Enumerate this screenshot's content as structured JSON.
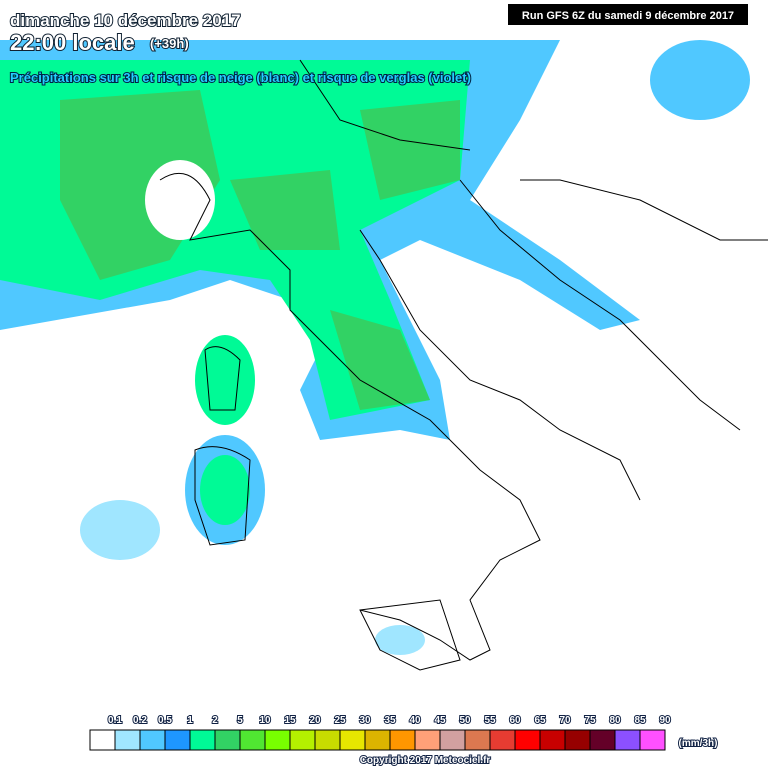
{
  "header": {
    "date": "dimanche 10 décembre 2017",
    "time": "22:00 locale",
    "lead": "(+39h)",
    "subtitle": "Précipitations sur 3h et risque de neige (blanc) et risque de verglas (violet)",
    "run": "Run GFS 6Z du samedi 9 décembre 2017"
  },
  "legend": {
    "labels": [
      "0.1",
      "0.2",
      "0.5",
      "1",
      "2",
      "5",
      "10",
      "15",
      "20",
      "25",
      "30",
      "35",
      "40",
      "45",
      "50",
      "55",
      "60",
      "65",
      "70",
      "75",
      "80",
      "85",
      "90"
    ],
    "colors": [
      "#ffffff",
      "#a0e6ff",
      "#50c8ff",
      "#1e96ff",
      "#00fa96",
      "#32d264",
      "#50e632",
      "#78ff00",
      "#b4f000",
      "#c8dc00",
      "#e6e600",
      "#dcb400",
      "#ff9600",
      "#ffa078",
      "#d2a0a0",
      "#dc7850",
      "#e63c32",
      "#ff0000",
      "#c80000",
      "#960000",
      "#640028",
      "#8c50ff",
      "#ff50ff"
    ],
    "unit": "(mm/3h)"
  },
  "footer": {
    "copyright": "Copyright 2017 Meteociel.fr"
  }
}
